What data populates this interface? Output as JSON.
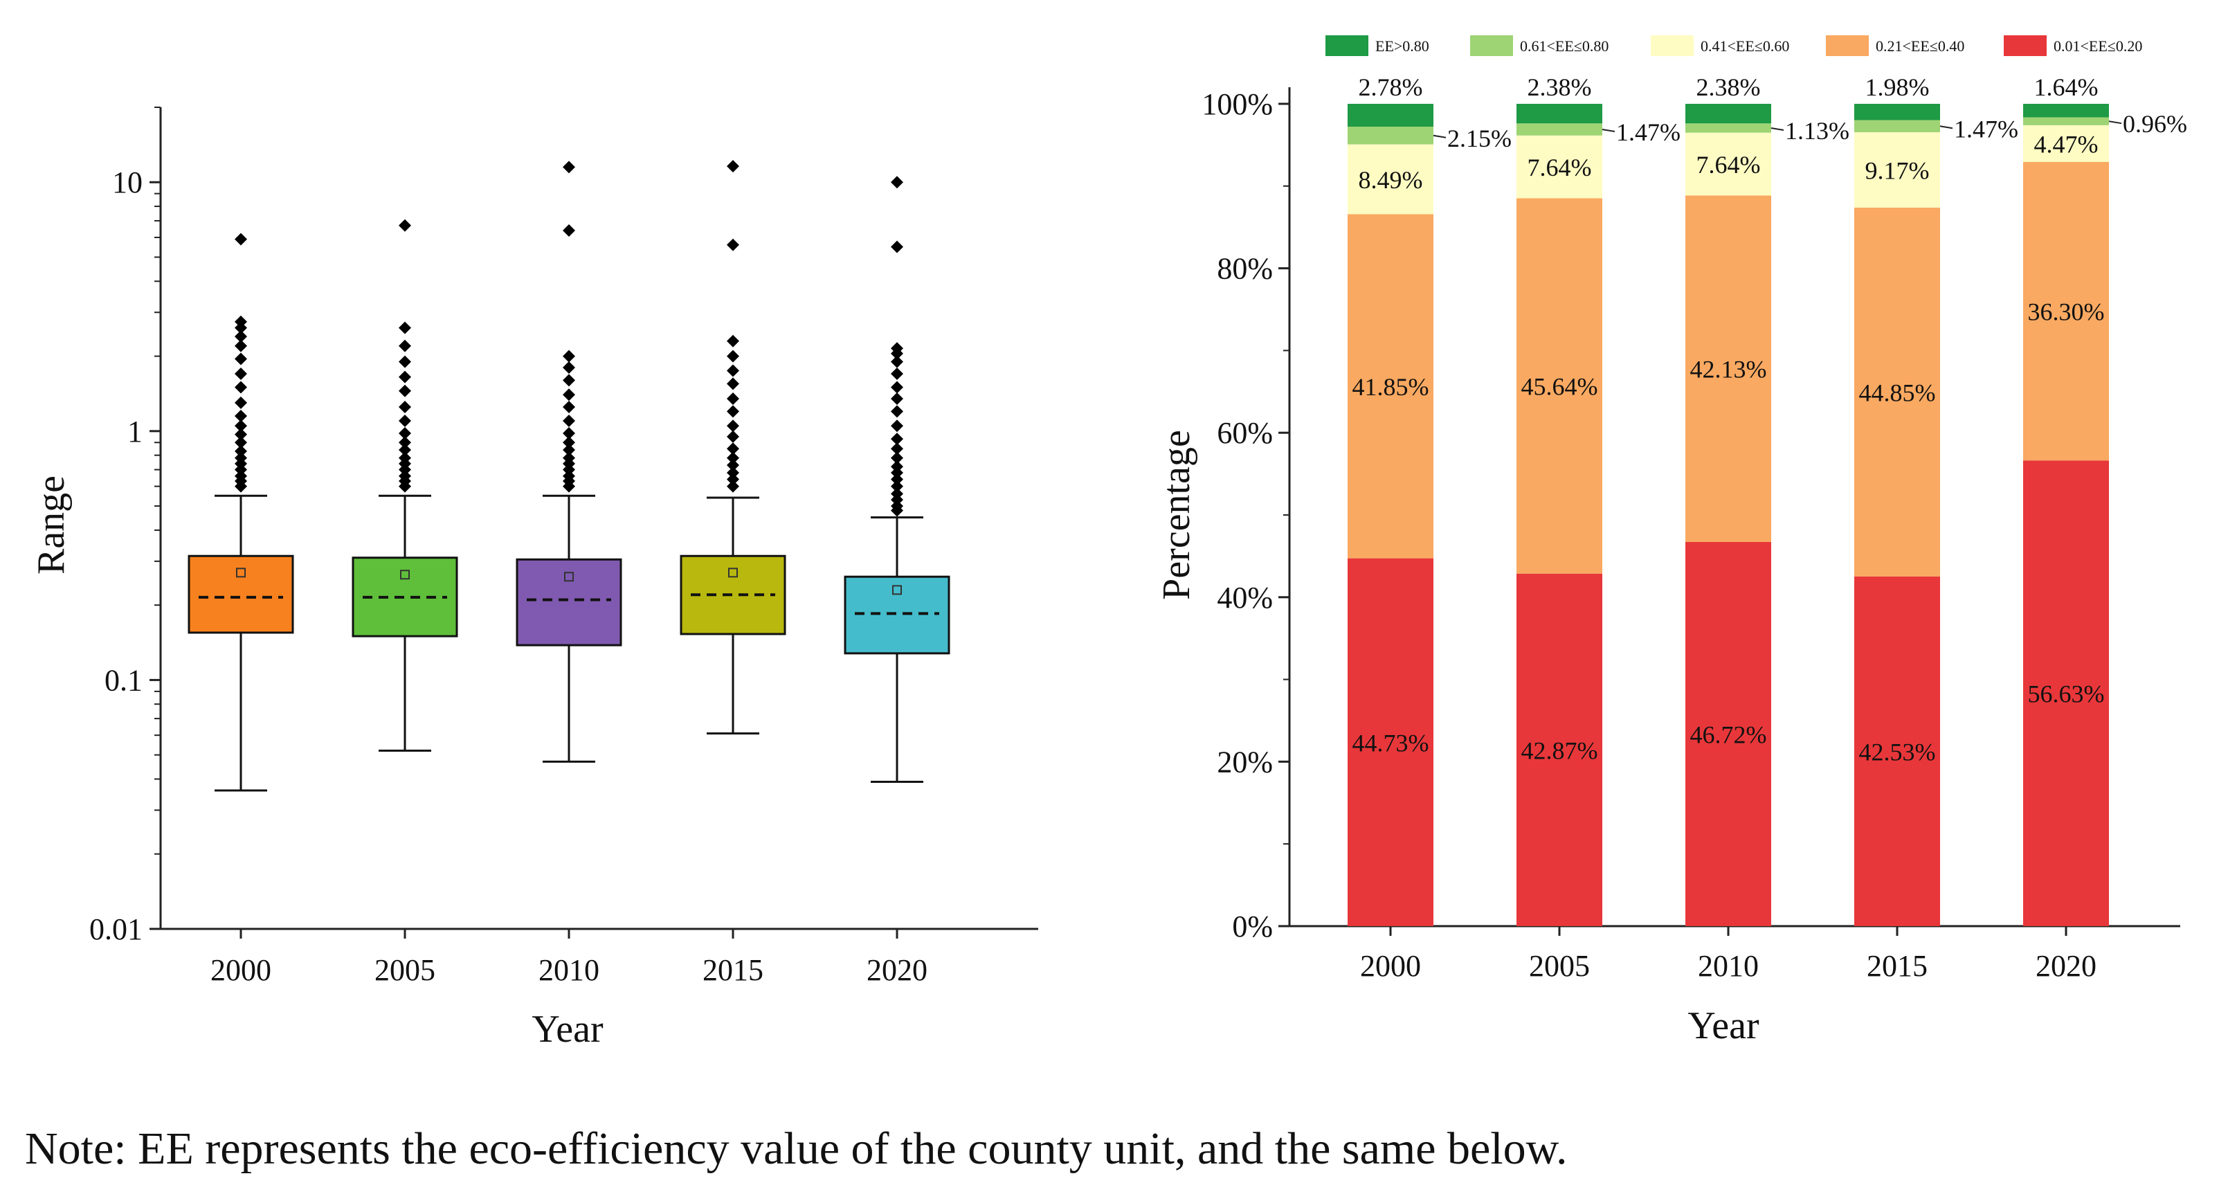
{
  "chart_data": [
    {
      "type": "box",
      "xlabel": "Year",
      "ylabel": "Range",
      "yscale": "log",
      "ylim": [
        0.01,
        20
      ],
      "yticks": [
        0.01,
        0.1,
        1,
        10
      ],
      "ytick_labels": [
        "0.01",
        "0.1",
        "1",
        "10"
      ],
      "categories": [
        "2000",
        "2005",
        "2010",
        "2015",
        "2020"
      ],
      "colors": [
        "#f7811e",
        "#5fbf3a",
        "#7f5ab0",
        "#b9b80e",
        "#45bccb"
      ],
      "boxes": [
        {
          "whisker_low": 0.036,
          "q1": 0.155,
          "median": 0.215,
          "q3": 0.315,
          "whisker_high": 0.55,
          "mean": 0.27,
          "outliers": [
            0.6,
            0.63,
            0.66,
            0.7,
            0.74,
            0.78,
            0.83,
            0.9,
            0.97,
            1.05,
            1.15,
            1.3,
            1.5,
            1.7,
            1.95,
            2.2,
            2.4,
            2.6,
            2.75,
            5.9
          ]
        },
        {
          "whisker_low": 0.052,
          "q1": 0.15,
          "median": 0.215,
          "q3": 0.31,
          "whisker_high": 0.55,
          "mean": 0.265,
          "outliers": [
            0.6,
            0.63,
            0.66,
            0.7,
            0.74,
            0.78,
            0.84,
            0.9,
            0.98,
            1.1,
            1.25,
            1.45,
            1.65,
            1.9,
            2.2,
            2.6,
            6.7
          ]
        },
        {
          "whisker_low": 0.047,
          "q1": 0.138,
          "median": 0.21,
          "q3": 0.305,
          "whisker_high": 0.55,
          "mean": 0.26,
          "outliers": [
            0.6,
            0.63,
            0.66,
            0.7,
            0.74,
            0.78,
            0.84,
            0.9,
            0.98,
            1.1,
            1.25,
            1.4,
            1.6,
            1.8,
            2.0,
            6.4,
            11.5
          ]
        },
        {
          "whisker_low": 0.061,
          "q1": 0.153,
          "median": 0.22,
          "q3": 0.315,
          "whisker_high": 0.54,
          "mean": 0.27,
          "outliers": [
            0.6,
            0.64,
            0.68,
            0.73,
            0.78,
            0.85,
            0.95,
            1.05,
            1.2,
            1.35,
            1.55,
            1.75,
            2.0,
            2.3,
            5.6,
            11.6
          ]
        },
        {
          "whisker_low": 0.039,
          "q1": 0.128,
          "median": 0.185,
          "q3": 0.26,
          "whisker_high": 0.45,
          "mean": 0.23,
          "outliers": [
            0.48,
            0.5,
            0.53,
            0.56,
            0.6,
            0.64,
            0.68,
            0.72,
            0.78,
            0.85,
            0.93,
            1.05,
            1.2,
            1.35,
            1.5,
            1.7,
            1.9,
            2.05,
            2.15,
            5.5,
            10.0
          ]
        }
      ]
    },
    {
      "type": "stacked_bar",
      "xlabel": "Year",
      "ylabel": "Percentage",
      "ylim": [
        0,
        100
      ],
      "yticks": [
        0,
        20,
        40,
        60,
        80,
        100
      ],
      "ytick_labels": [
        "0%",
        "20%",
        "40%",
        "60%",
        "80%",
        "100%"
      ],
      "categories": [
        "2000",
        "2005",
        "2010",
        "2015",
        "2020"
      ],
      "series": [
        {
          "name": "0.01<EE≤0.20",
          "color": "#e8373a",
          "values": [
            44.73,
            42.87,
            46.72,
            42.53,
            56.63
          ],
          "labels": [
            "44.73%",
            "42.87%",
            "46.72%",
            "42.53%",
            "56.63%"
          ]
        },
        {
          "name": "0.21<EE≤0.40",
          "color": "#f9a961",
          "values": [
            41.85,
            45.64,
            42.13,
            44.85,
            36.3
          ],
          "labels": [
            "41.85%",
            "45.64%",
            "42.13%",
            "44.85%",
            "36.30%"
          ]
        },
        {
          "name": "0.41<EE≤0.60",
          "color": "#fefcc3",
          "values": [
            8.49,
            7.64,
            7.64,
            9.17,
            4.47
          ],
          "labels": [
            "8.49%",
            "7.64%",
            "7.64%",
            "9.17%",
            "4.47%"
          ]
        },
        {
          "name": "0.61<EE≤0.80",
          "color": "#9ed474",
          "values": [
            2.15,
            1.47,
            1.13,
            1.47,
            0.96
          ],
          "labels": [
            "2.15%",
            "1.47%",
            "1.13%",
            "1.47%",
            "0.96%"
          ]
        },
        {
          "name": "EE>0.80",
          "color": "#1f9a45",
          "values": [
            2.78,
            2.38,
            2.38,
            1.98,
            1.64
          ],
          "labels": [
            "2.78%",
            "2.38%",
            "2.38%",
            "1.98%",
            "1.64%"
          ]
        }
      ],
      "legend_order": [
        "EE>0.80",
        "0.61<EE≤0.80",
        "0.41<EE≤0.60",
        "0.21<EE≤0.40",
        "0.01<EE≤0.20"
      ],
      "legend_position": "top"
    }
  ],
  "note": "Note: EE represents the eco-efficiency value of the county unit, and the same below."
}
